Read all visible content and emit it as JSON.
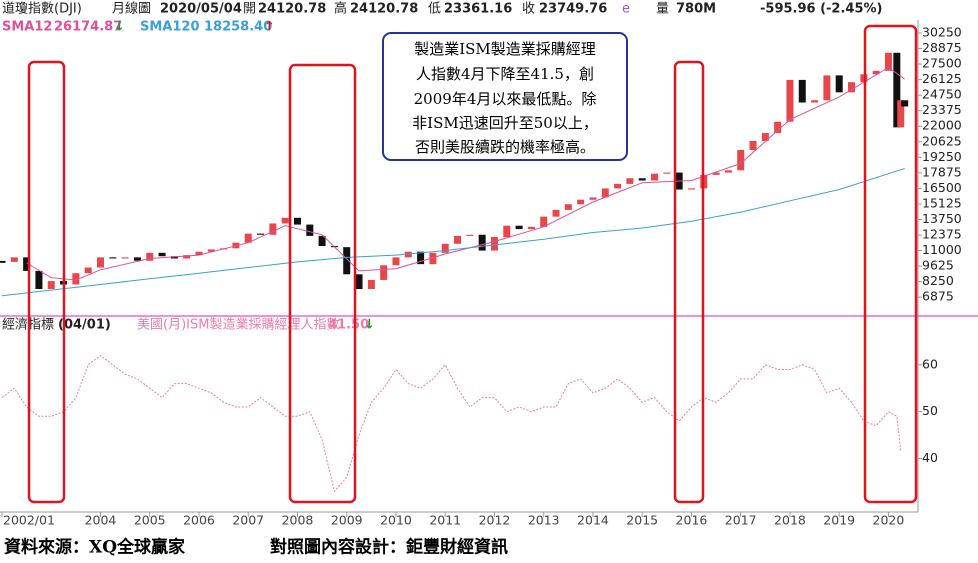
{
  "header": {
    "symbol": "道瓊指數(DJI)",
    "period": "月線圖",
    "date": "2020/05/04",
    "open_label": "開",
    "open": "24120.78",
    "high_label": "高",
    "high": "24120.78",
    "low_label": "低",
    "low": "23361.16",
    "close_label": "收",
    "close": "23749.76",
    "flag": "e",
    "volume_label": "量",
    "volume": "780M",
    "change": "-595.96 (-2.45%)"
  },
  "annotation": [
    "製造業ISM製造業採購經理",
    "人指數4月下降至41.5，創",
    "2009年4月以來最低點。除",
    "非ISM迅速回升至50以上，",
    "否則美股續跌的機率極高。"
  ],
  "footer": [
    "資料來源：XQ全球贏家",
    "對照圖內容設計：鉅豐財經資訊"
  ],
  "chart_data": [
    {
      "type": "candlestick",
      "color_up": "#e8474a",
      "color_down": "#111111",
      "x": [
        2002,
        2002.25,
        2002.5,
        2002.75,
        2003,
        2003.25,
        2003.5,
        2003.75,
        2004,
        2004.25,
        2004.5,
        2004.75,
        2005,
        2005.25,
        2005.5,
        2005.75,
        2006,
        2006.25,
        2006.5,
        2006.75,
        2007,
        2007.25,
        2007.5,
        2007.75,
        2008,
        2008.25,
        2008.5,
        2008.75,
        2009,
        2009.25,
        2009.5,
        2009.75,
        2010,
        2010.25,
        2010.5,
        2010.75,
        2011,
        2011.25,
        2011.5,
        2011.75,
        2012,
        2012.25,
        2012.5,
        2012.75,
        2013,
        2013.25,
        2013.5,
        2013.75,
        2014,
        2014.25,
        2014.5,
        2014.75,
        2015,
        2015.25,
        2015.5,
        2015.75,
        2016,
        2016.25,
        2016.5,
        2016.75,
        2017,
        2017.25,
        2017.5,
        2017.75,
        2018,
        2018.25,
        2018.5,
        2018.75,
        2019,
        2019.25,
        2019.5,
        2019.75,
        2020,
        2020.17,
        2020.25,
        2020.33
      ],
      "values": [
        10000,
        10400,
        9200,
        7600,
        8300,
        8000,
        9000,
        9500,
        10400,
        10300,
        10400,
        10100,
        10800,
        10500,
        10300,
        10600,
        10900,
        11100,
        11200,
        11700,
        12500,
        12400,
        13400,
        13900,
        13300,
        12300,
        11400,
        11300,
        8900,
        7600,
        8400,
        9700,
        10400,
        10900,
        9800,
        10800,
        11600,
        12300,
        12400,
        11000,
        12200,
        13200,
        12900,
        13100,
        14000,
        14600,
        15100,
        15500,
        15700,
        16500,
        16900,
        17400,
        17200,
        17800,
        17900,
        16400,
        16500,
        17700,
        17900,
        18100,
        19900,
        20700,
        21400,
        22400,
        26100,
        24100,
        24300,
        26500,
        25000,
        25900,
        26600,
        26900,
        28500,
        21900,
        24300,
        23750
      ],
      "series": [
        {
          "name": "SMA12",
          "legend_value": "26174.87",
          "arrow": "↓",
          "color": "#e0509a",
          "x": [
            2002.5,
            2003,
            2003.5,
            2004,
            2005,
            2006,
            2007,
            2007.75,
            2008.5,
            2009.25,
            2010,
            2011,
            2012,
            2013,
            2014,
            2015,
            2016,
            2017,
            2018,
            2019,
            2020,
            2020.33
          ],
          "values": [
            9900,
            8600,
            8400,
            9300,
            10300,
            10600,
            11700,
            13200,
            12400,
            9200,
            9400,
            10700,
            11800,
            13100,
            15300,
            17000,
            17200,
            18700,
            22600,
            24600,
            27200,
            26174.87
          ]
        },
        {
          "name": "SMA120",
          "legend_value": "18258.40",
          "arrow": "↑",
          "color": "#3aa0d8",
          "x": [
            2002,
            2003,
            2004,
            2005,
            2006,
            2007,
            2008,
            2009,
            2010,
            2011,
            2012,
            2013,
            2014,
            2015,
            2016,
            2017,
            2018,
            2019,
            2020.33
          ],
          "values": [
            7000,
            7500,
            8000,
            8500,
            9000,
            9500,
            10000,
            10400,
            10600,
            11000,
            11500,
            12000,
            12600,
            13000,
            13600,
            14400,
            15400,
            16400,
            18258.4
          ]
        }
      ],
      "xlim": [
        2002,
        2020.6
      ],
      "ylim": [
        5300,
        31400
      ],
      "yticks": [
        6875,
        8250,
        9625,
        11000,
        12375,
        13750,
        15125,
        16500,
        17875,
        19250,
        20625,
        22000,
        23375,
        24750,
        26125,
        27500,
        28875,
        30250
      ]
    },
    {
      "type": "line",
      "label": "經濟指標",
      "date": "(04/01)",
      "title": "美國(月)ISM製造業採購經理人指數",
      "last_value": "41.50",
      "arrow": "↓",
      "color": "#f07aa8",
      "x": [
        2002,
        2002.25,
        2002.5,
        2002.75,
        2003,
        2003.25,
        2003.5,
        2003.75,
        2004,
        2004.25,
        2004.5,
        2004.75,
        2005,
        2005.25,
        2005.5,
        2005.75,
        2006,
        2006.25,
        2006.5,
        2006.75,
        2007,
        2007.25,
        2007.5,
        2007.75,
        2008,
        2008.25,
        2008.5,
        2008.75,
        2009,
        2009.25,
        2009.5,
        2009.75,
        2010,
        2010.25,
        2010.5,
        2010.75,
        2011,
        2011.25,
        2011.5,
        2011.75,
        2012,
        2012.25,
        2012.5,
        2012.75,
        2013,
        2013.25,
        2013.5,
        2013.75,
        2014,
        2014.25,
        2014.5,
        2014.75,
        2015,
        2015.25,
        2015.5,
        2015.75,
        2016,
        2016.25,
        2016.5,
        2016.75,
        2017,
        2017.25,
        2017.5,
        2017.75,
        2018,
        2018.25,
        2018.5,
        2018.75,
        2019,
        2019.25,
        2019.5,
        2019.75,
        2020,
        2020.17,
        2020.25
      ],
      "values": [
        53,
        55,
        51,
        49,
        49,
        50,
        53,
        60,
        62,
        60,
        58,
        57,
        55,
        53,
        56,
        56,
        55,
        54,
        52,
        51,
        51,
        53,
        51,
        49,
        49,
        50,
        44,
        33,
        36,
        45,
        52,
        55,
        59,
        56,
        55,
        57,
        60,
        55,
        51,
        53,
        53,
        50,
        51,
        50,
        51,
        51,
        56,
        57,
        54,
        55,
        57,
        55,
        52,
        53,
        50,
        48,
        51,
        53,
        52,
        54,
        57,
        57,
        60,
        59,
        59,
        60,
        59,
        54,
        55,
        52,
        48,
        47,
        50,
        49,
        41.5
      ],
      "xlim": [
        2002,
        2020.6
      ],
      "ylim": [
        29,
        70
      ],
      "yticks": [
        40,
        50,
        60
      ],
      "xticks": [
        {
          "value": 2002,
          "label": "2002/01"
        },
        2004,
        2005,
        2006,
        2007,
        2008,
        2009,
        2010,
        2011,
        2012,
        2013,
        2014,
        2015,
        2016,
        2017,
        2018,
        2019,
        2020
      ]
    }
  ]
}
